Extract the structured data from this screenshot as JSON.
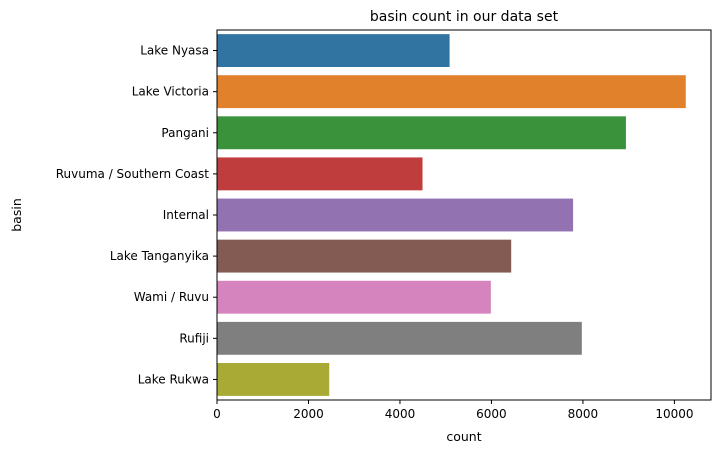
{
  "chart_data": {
    "type": "bar",
    "orientation": "horizontal",
    "title": "basin count in our data set",
    "xlabel": "count",
    "ylabel": "basin",
    "xlim": [
      0,
      10800
    ],
    "xticks": [
      0,
      2000,
      4000,
      6000,
      8000,
      10000
    ],
    "grid": false,
    "categories": [
      "Lake Nyasa",
      "Lake Victoria",
      "Pangani",
      "Ruvuma / Southern Coast",
      "Internal",
      "Lake Tanganyika",
      "Wami / Ruvu",
      "Rufiji",
      "Lake Rukwa"
    ],
    "values": [
      5085,
      10248,
      8940,
      4493,
      7785,
      6432,
      5987,
      7976,
      2454
    ],
    "colors": [
      "#3274a1",
      "#e1812c",
      "#3a923a",
      "#c03d3e",
      "#9372b2",
      "#845b53",
      "#d684bd",
      "#7f7f7f",
      "#a9aa35"
    ]
  }
}
